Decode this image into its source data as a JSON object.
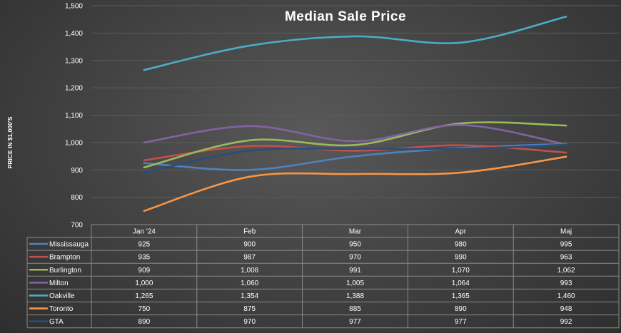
{
  "chart_data": {
    "type": "line",
    "title": "Median Sale Price",
    "xlabel": "",
    "ylabel": "PRICE IN $1,000'S",
    "categories": [
      "Jan '24",
      "Feb",
      "Mar",
      "Apr",
      "Maj"
    ],
    "ylim": [
      700,
      1500
    ],
    "yticks": [
      700,
      800,
      900,
      1000,
      1100,
      1200,
      1300,
      1400,
      1500
    ],
    "ytick_labels": [
      "700",
      "800",
      "900",
      "1,000",
      "1,100",
      "1,200",
      "1,300",
      "1,400",
      "1,500"
    ],
    "grid": true,
    "legend": "data-table",
    "series": [
      {
        "name": "Mississauga",
        "color": "#4f81bd",
        "values": [
          925,
          900,
          950,
          980,
          995
        ],
        "labels": [
          "925",
          "900",
          "950",
          "980",
          "995"
        ]
      },
      {
        "name": "Brampton",
        "color": "#c0504d",
        "values": [
          935,
          987,
          970,
          990,
          963
        ],
        "labels": [
          "935",
          "987",
          "970",
          "990",
          "963"
        ]
      },
      {
        "name": "Burlington",
        "color": "#9bbb59",
        "values": [
          909,
          1008,
          991,
          1070,
          1062
        ],
        "labels": [
          "909",
          "1,008",
          "991",
          "1,070",
          "1,062"
        ]
      },
      {
        "name": "Milton",
        "color": "#8064a2",
        "values": [
          1000,
          1060,
          1005,
          1064,
          993
        ],
        "labels": [
          "1,000",
          "1,060",
          "1,005",
          "1,064",
          "993"
        ]
      },
      {
        "name": "Oakville",
        "color": "#4bacc6",
        "values": [
          1265,
          1354,
          1388,
          1365,
          1460
        ],
        "labels": [
          "1,265",
          "1,354",
          "1,388",
          "1,365",
          "1,460"
        ]
      },
      {
        "name": "Toronto",
        "color": "#f79646",
        "values": [
          750,
          875,
          885,
          890,
          948
        ],
        "labels": [
          "750",
          "875",
          "885",
          "890",
          "948"
        ]
      },
      {
        "name": "GTA",
        "color": "#2c4d75",
        "values": [
          890,
          970,
          977,
          977,
          992
        ],
        "labels": [
          "890",
          "970",
          "977",
          "977",
          "992"
        ]
      }
    ]
  }
}
